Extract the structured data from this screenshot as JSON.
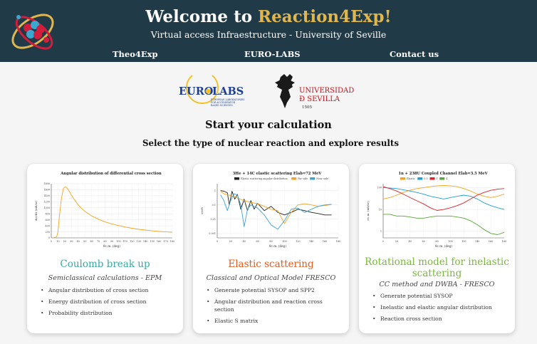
{
  "header": {
    "title_prefix": "Welcome to ",
    "title_accent": "Reaction4Exp!",
    "subtitle": "Virtual access Infraestructure - University of Seville",
    "accent_color": "#e0b64f",
    "background_color": "#203a47",
    "nav": [
      "Theo4Exp",
      "EURO-LABS",
      "Contact us"
    ]
  },
  "partners": {
    "eurolabs": {
      "name_left": "EURO",
      "name_right": "LABS",
      "tagline": [
        "EUROPEAN LABORATORIES",
        "FOR ACCELERATOR",
        "BASED SCIENCES"
      ]
    },
    "us": {
      "line1": "UNIVERSIDAD",
      "line2": "Ð SEVILLA",
      "year": "1505"
    }
  },
  "headings": {
    "start": "Start your calculation",
    "select": "Select the type of nuclear reaction and explore results"
  },
  "cards": [
    {
      "title": "Coulomb break up",
      "title_color": "#3aa9a0",
      "subtitle": "Semiclassical calculations - EPM",
      "bullets": [
        "Angular distribution of cross section",
        "Energy distribution of cross section",
        "Probability distribution"
      ]
    },
    {
      "title": "Elastic scattering",
      "title_color": "#e25b1c",
      "subtitle": "Classical and Optical Model FRESCO",
      "bullets": [
        "Generate potential SYSOP and SPP2",
        "Angular distribution and reaction cross section",
        "Elastic S matrix"
      ]
    },
    {
      "title": "Rotational model for inelastic scattering",
      "title_color": "#7ab83c",
      "subtitle": "CC method and DWBA - FRESCO",
      "bullets": [
        "Generate potential SYSOP",
        "Inelastic and elastic angular distribution",
        "Reaction cross section"
      ]
    }
  ],
  "chart_data": [
    {
      "type": "line",
      "title": "Angular distribution of differential cross section",
      "xlabel": "θc.m. (deg)",
      "ylabel": "dσ/dΩ (mb/sr)",
      "xlim": [
        0,
        180
      ],
      "ylim": [
        0,
        1800
      ],
      "x_ticks": [
        0,
        10,
        20,
        30,
        40,
        50,
        60,
        70,
        80,
        90,
        100,
        110,
        120,
        130,
        140,
        150,
        160,
        170,
        180
      ],
      "y_ticks": [
        0,
        200,
        400,
        600,
        800,
        1000,
        1200,
        1400,
        1600,
        1800
      ],
      "grid": true,
      "series": [
        {
          "color": "#f2a41f",
          "x": [
            2,
            5,
            8,
            10,
            12,
            15,
            18,
            21,
            24,
            27,
            30,
            35,
            40,
            45,
            50,
            60,
            70,
            80,
            90,
            100,
            110,
            120,
            130,
            140,
            150,
            160,
            170,
            180
          ],
          "y": [
            0,
            10,
            40,
            200,
            700,
            1300,
            1650,
            1700,
            1640,
            1540,
            1420,
            1250,
            1100,
            980,
            880,
            730,
            620,
            530,
            465,
            410,
            360,
            320,
            285,
            260,
            235,
            215,
            200,
            190
          ]
        }
      ]
    },
    {
      "type": "line",
      "title": "3He + 14C elastic scattering Elab=72 MeV",
      "xlabel": "θc.m. (deg)",
      "ylabel": "σ/σR",
      "xlim": [
        0,
        180
      ],
      "log_y": true,
      "ylim": [
        0.0005,
        3
      ],
      "x_ticks": [
        0,
        20,
        40,
        60,
        80,
        100,
        120,
        140,
        160,
        180
      ],
      "y_ticks": [
        "0.001",
        "0.01",
        "0.1",
        "1"
      ],
      "grid": true,
      "legend_position": "top",
      "series": [
        {
          "name": "Elastic scattering angular distribution",
          "color": "#222222",
          "x": [
            5,
            10,
            15,
            18,
            22,
            26,
            30,
            35,
            40,
            45,
            50,
            55,
            60,
            70,
            80,
            90,
            100,
            110,
            120,
            130,
            140,
            150,
            160,
            170
          ],
          "y": [
            1,
            0.9,
            0.7,
            0.1,
            0.9,
            0.25,
            0.55,
            0.05,
            0.25,
            0.04,
            0.2,
            0.05,
            0.13,
            0.04,
            0.08,
            0.03,
            0.02,
            0.03,
            0.05,
            0.04,
            0.03,
            0.025,
            0.02,
            0.02
          ]
        },
        {
          "name": "Far side",
          "color": "#f2a41f",
          "x": [
            5,
            10,
            20,
            30,
            40,
            50,
            60,
            70,
            80,
            90,
            100,
            110,
            120,
            130,
            140,
            150,
            160,
            170
          ],
          "y": [
            0.9,
            0.6,
            0.45,
            0.3,
            0.2,
            0.15,
            0.12,
            0.08,
            0.05,
            0.04,
            0.005,
            0.03,
            0.1,
            0.12,
            0.1,
            0.08,
            0.09,
            0.11
          ]
        },
        {
          "name": "Near side",
          "color": "#3ba3d1",
          "x": [
            5,
            10,
            15,
            20,
            25,
            30,
            35,
            40,
            45,
            50,
            60,
            70,
            80,
            90,
            100,
            110,
            120,
            130,
            140,
            150,
            160,
            170
          ],
          "y": [
            0.5,
            0.2,
            0.04,
            0.2,
            0.6,
            0.5,
            0.1,
            0.003,
            0.05,
            0.1,
            0.06,
            0.02,
            0.004,
            0.002,
            0.008,
            0.05,
            0.06,
            0.03,
            0.05,
            0.08,
            0.1,
            0.11
          ]
        }
      ]
    },
    {
      "type": "line",
      "title": "1n + 238U Coupled Channel Elab=3.5 MeV",
      "xlabel": "θc.m. (deg)",
      "ylabel": "σc.m. (mb/sr)",
      "xlim": [
        0,
        180
      ],
      "log_y": true,
      "ylim": [
        0.5,
        150
      ],
      "x_ticks": [
        0,
        20,
        40,
        60,
        80,
        100,
        120,
        140,
        160,
        180
      ],
      "y_ticks": [
        "1",
        "10",
        "100"
      ],
      "grid": true,
      "legend_position": "top",
      "series": [
        {
          "name": "Elastic",
          "color": "#f2a41f",
          "x": [
            0,
            10,
            20,
            30,
            40,
            50,
            60,
            70,
            80,
            90,
            100,
            110,
            120,
            130,
            140,
            150,
            160,
            170,
            180
          ],
          "y": [
            30,
            35,
            45,
            60,
            75,
            90,
            100,
            110,
            120,
            125,
            120,
            110,
            90,
            70,
            50,
            40,
            35,
            40,
            50
          ]
        },
        {
          "name": "0.5",
          "color": "#1e9fd6",
          "x": [
            0,
            10,
            20,
            30,
            40,
            50,
            60,
            70,
            80,
            90,
            100,
            110,
            120,
            130,
            140,
            150,
            160,
            170,
            180
          ],
          "y": [
            100,
            95,
            90,
            80,
            70,
            60,
            50,
            40,
            35,
            30,
            35,
            40,
            45,
            40,
            30,
            20,
            15,
            12,
            10
          ]
        },
        {
          "name": "1",
          "color": "#e02028",
          "x": [
            0,
            10,
            20,
            30,
            40,
            50,
            60,
            70,
            80,
            90,
            100,
            110,
            120,
            130,
            140,
            150,
            160,
            170,
            180
          ],
          "y": [
            110,
            90,
            70,
            50,
            35,
            25,
            18,
            12,
            9,
            10,
            12,
            15,
            20,
            30,
            45,
            60,
            75,
            85,
            90
          ]
        },
        {
          "name": "4",
          "color": "#57a532",
          "x": [
            0,
            10,
            20,
            30,
            40,
            50,
            60,
            70,
            80,
            90,
            100,
            110,
            120,
            130,
            140,
            150,
            160,
            170,
            180
          ],
          "y": [
            6,
            6,
            5,
            5,
            4.5,
            4,
            4,
            4.5,
            5,
            5,
            5,
            4.5,
            4,
            3,
            2,
            1.2,
            0.8,
            0.7,
            0.9
          ]
        }
      ]
    }
  ]
}
